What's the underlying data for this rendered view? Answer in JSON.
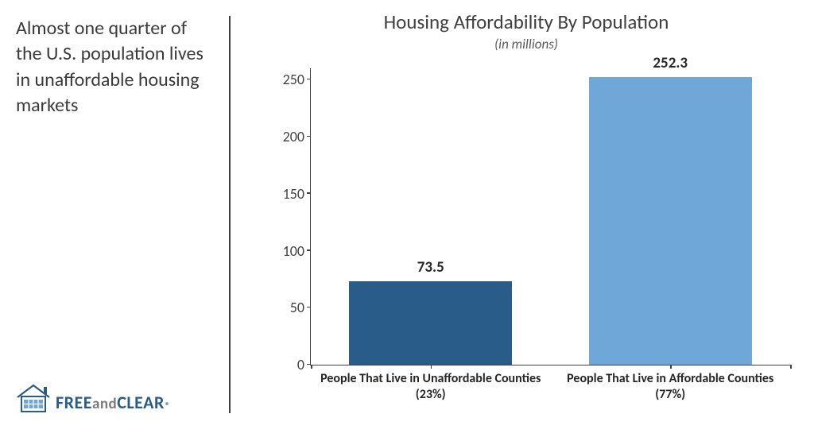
{
  "callout": {
    "text": "Almost one quarter of the U.S. population lives in unaffordable housing markets",
    "fontsize": 24,
    "color": "#3a3a3a"
  },
  "logo": {
    "free": "FREE",
    "and": "and",
    "clear": "CLEAR",
    "reg": "®",
    "free_color": "#2a5c8a",
    "and_color": "#7b7b7b",
    "clear_color": "#2a5c8a",
    "fontsize": 22,
    "and_fontsize": 19,
    "house_stroke": "#2a5c8a",
    "house_fill_light": "#6fa8d8"
  },
  "chart": {
    "type": "bar",
    "title": "Housing Affordability By Population",
    "title_fontsize": 25,
    "title_color": "#404040",
    "subtitle": "(in millions)",
    "subtitle_fontsize": 17,
    "subtitle_color": "#595959",
    "ylim": [
      0,
      260
    ],
    "yticks": [
      0,
      50,
      100,
      150,
      200,
      250
    ],
    "ytick_fontsize": 18,
    "axis_color": "#404040",
    "background_color": "#ffffff",
    "bar_width_pct": 34,
    "bars": [
      {
        "label_top": "73.5",
        "value": 73.5,
        "x_label": "People That Live in Unaffordable Counties (23%)",
        "color": "#2a5c8a",
        "center_pct": 25
      },
      {
        "label_top": "252.3",
        "value": 252.3,
        "x_label": "People That Live in Affordable Counties (77%)",
        "color": "#6fa8d8",
        "center_pct": 75
      }
    ],
    "bar_label_fontsize": 19,
    "x_label_fontsize": 16
  }
}
